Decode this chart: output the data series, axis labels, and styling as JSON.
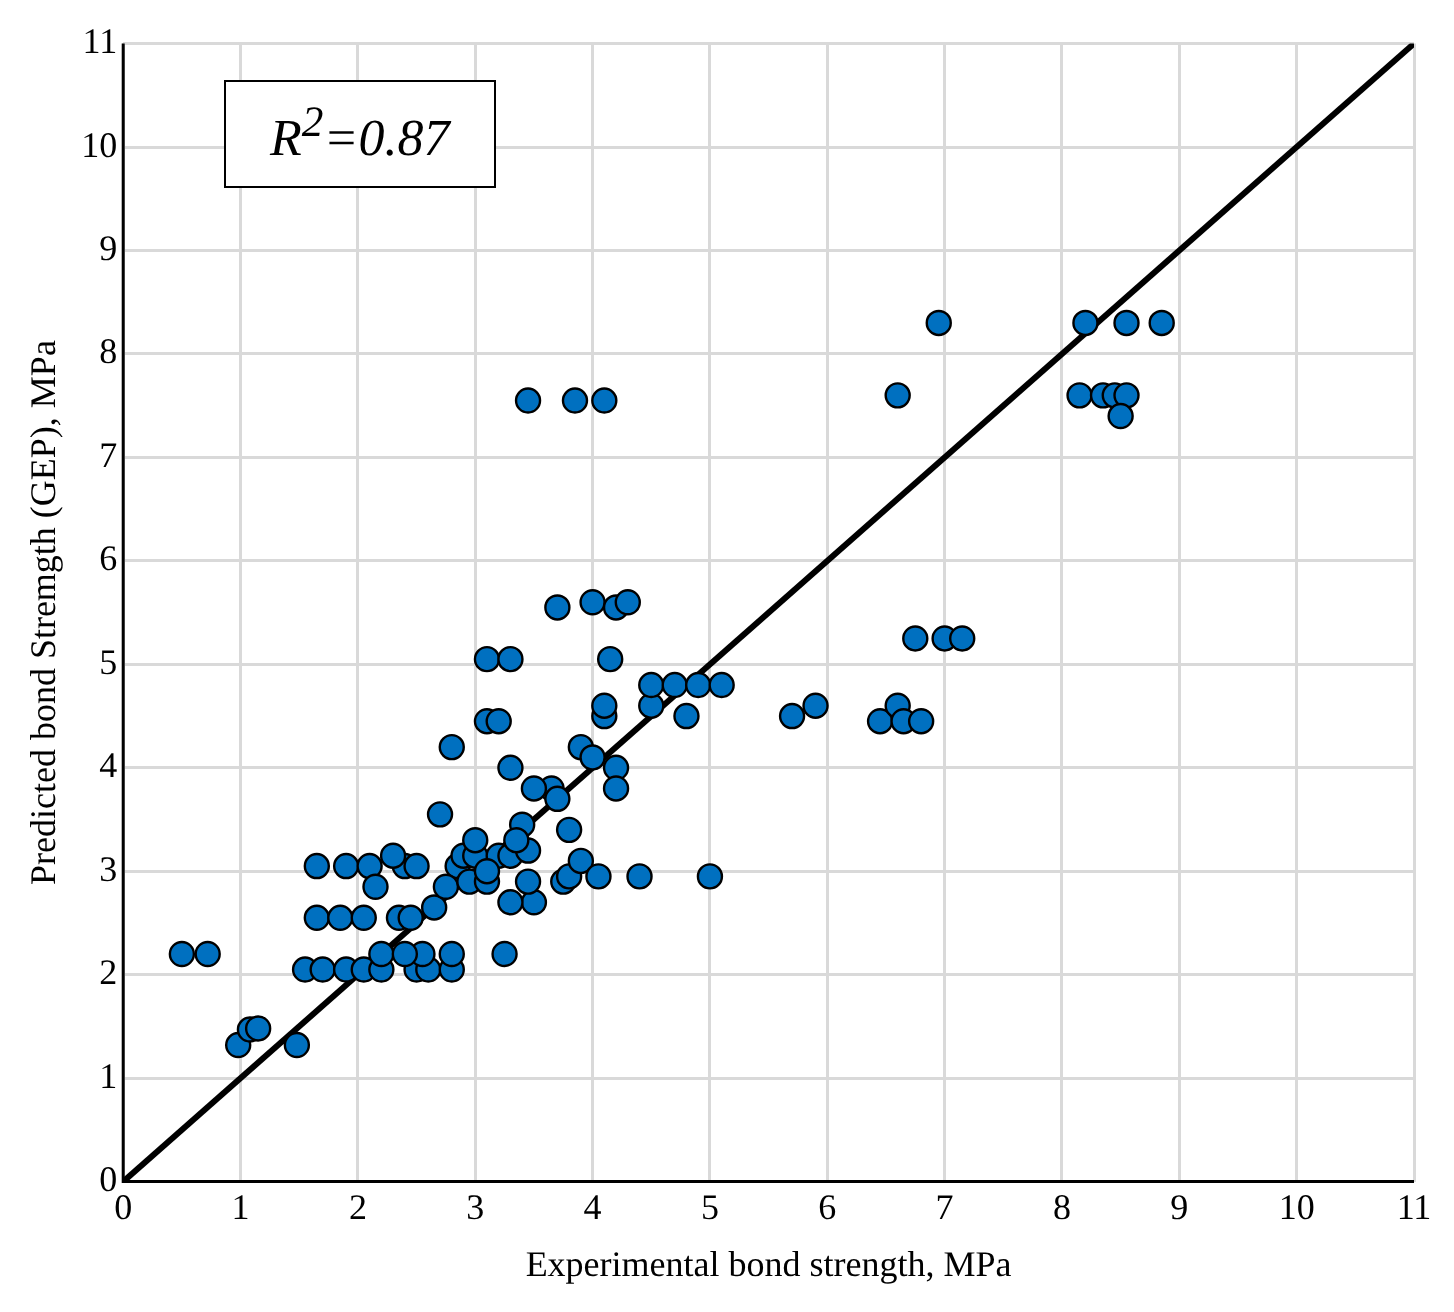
{
  "chart_data": {
    "type": "scatter",
    "xlabel": "Experimental bond strength, MPa",
    "ylabel": "Predicted bond Stremgth (GEP), MPa",
    "annotations": [
      "R$^{2}$=0.87"
    ],
    "xlim": [
      0,
      11
    ],
    "ylim": [
      0,
      11
    ],
    "xticks": [
      0,
      1,
      2,
      3,
      4,
      5,
      6,
      7,
      8,
      9,
      10,
      11
    ],
    "yticks": [
      0,
      1,
      2,
      3,
      4,
      5,
      6,
      7,
      8,
      9,
      10,
      11
    ],
    "grid": true,
    "legend": false,
    "series": [
      {
        "type": "scatter",
        "color": "#0070c0",
        "marker": "circle",
        "x": [
          0.5,
          0.72,
          0.98,
          1.08,
          1.15,
          1.48,
          1.55,
          1.7,
          1.9,
          2.05,
          2.2,
          2.5,
          2.6,
          2.8,
          2.55,
          2.2,
          2.4,
          2.8,
          3.25,
          1.65,
          1.85,
          2.05,
          2.35,
          2.45,
          1.65,
          1.9,
          2.1,
          2.4,
          2.5,
          2.85,
          2.9,
          3.0,
          3.2,
          3.3,
          2.15,
          2.3,
          2.65,
          2.75,
          2.95,
          3.1,
          2.7,
          2.8,
          3.1,
          3.2,
          3.3,
          3.1,
          3.3,
          3.45,
          3.85,
          4.1,
          3.4,
          3.45,
          3.5,
          3.45,
          3.65,
          3.7,
          3.75,
          3.8,
          3.8,
          3.9,
          3.9,
          4.0,
          4.05,
          4.0,
          4.1,
          4.1,
          4.15,
          4.2,
          4.2,
          4.2,
          4.3,
          4.4,
          4.5,
          4.5,
          4.7,
          4.8,
          4.9,
          5.1,
          5.0,
          3.7,
          3.5,
          3.35,
          3.3,
          3.0,
          3.1,
          5.7,
          5.9,
          6.45,
          6.6,
          6.65,
          6.8,
          6.6,
          6.95,
          6.75,
          7.0,
          7.15,
          8.2,
          8.55,
          8.85,
          8.15,
          8.35,
          8.45,
          8.55,
          8.5
        ],
        "values": [
          2.2,
          2.2,
          1.32,
          1.47,
          1.48,
          1.32,
          2.05,
          2.05,
          2.05,
          2.05,
          2.05,
          2.05,
          2.05,
          2.05,
          2.2,
          2.2,
          2.2,
          2.2,
          2.2,
          2.55,
          2.55,
          2.55,
          2.55,
          2.55,
          3.05,
          3.05,
          3.05,
          3.05,
          3.05,
          3.05,
          3.15,
          3.15,
          3.15,
          3.15,
          2.85,
          3.15,
          2.65,
          2.85,
          2.9,
          2.9,
          3.55,
          4.2,
          4.45,
          4.45,
          4.0,
          5.05,
          5.05,
          7.55,
          7.55,
          7.55,
          3.45,
          3.2,
          2.7,
          2.9,
          3.8,
          3.7,
          2.9,
          3.4,
          2.95,
          3.1,
          4.2,
          4.1,
          2.95,
          5.6,
          4.5,
          4.6,
          5.05,
          4.0,
          3.8,
          5.55,
          5.6,
          2.95,
          4.6,
          4.8,
          4.8,
          4.5,
          4.8,
          4.8,
          2.95,
          5.55,
          3.8,
          3.3,
          2.7,
          3.3,
          3.0,
          4.5,
          4.6,
          4.45,
          4.6,
          4.45,
          4.45,
          7.6,
          8.3,
          5.25,
          5.25,
          5.25,
          8.3,
          8.3,
          8.3,
          7.6,
          7.6,
          7.6,
          7.6,
          7.4
        ]
      },
      {
        "type": "line",
        "color": "#000000",
        "x": [
          0,
          11
        ],
        "values": [
          0,
          11
        ]
      }
    ]
  }
}
